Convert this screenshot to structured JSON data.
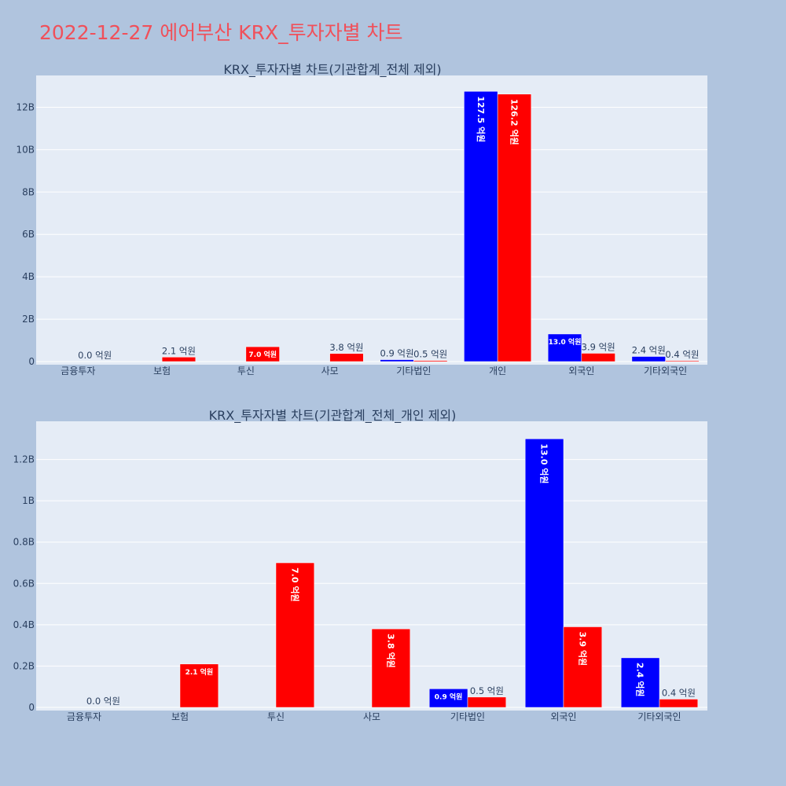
{
  "page": {
    "title": "2022-12-27 에어부산 KRX_투자자별 차트"
  },
  "colors": {
    "background": "#b0c4de",
    "plot_background": "#e5ecf6",
    "title": "#f0505a",
    "series_blue": "#0000ff",
    "series_red": "#ff0000"
  },
  "chart_data": [
    {
      "type": "bar",
      "title": "KRX_투자자별 차트(기관합계_전체 제외)",
      "categories": [
        "금융투자",
        "보험",
        "투신",
        "사모",
        "기타법인",
        "개인",
        "외국인",
        "기타외국인"
      ],
      "series": [
        {
          "color": "#0000ff",
          "values": [
            0,
            0,
            0,
            0,
            90000000,
            12750000000,
            1300000000,
            240000000
          ],
          "labels": [
            "",
            "",
            "",
            "",
            "0.9 억원",
            "127.5 억원",
            "13.0 억원",
            "2.4 억원"
          ]
        },
        {
          "color": "#ff0000",
          "values": [
            0,
            210000000,
            700000000,
            380000000,
            50000000,
            12620000000,
            390000000,
            40000000
          ],
          "labels": [
            "0.0 억원",
            "2.1 억원",
            "7.0 억원",
            "3.8 억원",
            "0.5 억원",
            "126.2 억원",
            "3.9 억원",
            "0.4 억원"
          ]
        }
      ],
      "ylim": [
        0,
        13500000000
      ],
      "yticks": [
        0,
        2000000000,
        4000000000,
        6000000000,
        8000000000,
        10000000000,
        12000000000
      ],
      "ytick_labels": [
        "0",
        "2B",
        "4B",
        "6B",
        "8B",
        "10B",
        "12B"
      ],
      "grid": true,
      "legend": "none"
    },
    {
      "type": "bar",
      "title": "KRX_투자자별 차트(기관합계_전체_개인 제외)",
      "categories": [
        "금융투자",
        "보험",
        "투신",
        "사모",
        "기타법인",
        "외국인",
        "기타외국인"
      ],
      "series": [
        {
          "color": "#0000ff",
          "values": [
            0,
            0,
            0,
            0,
            90000000,
            1300000000,
            240000000
          ],
          "labels": [
            "",
            "",
            "",
            "",
            "0.9 억원",
            "13.0 억원",
            "2.4 억원"
          ]
        },
        {
          "color": "#ff0000",
          "values": [
            0,
            210000000,
            700000000,
            380000000,
            50000000,
            390000000,
            40000000
          ],
          "labels": [
            "0.0 억원",
            "2.1 억원",
            "7.0 억원",
            "3.8 억원",
            "0.5 억원",
            "3.9 억원",
            "0.4 억원"
          ]
        }
      ],
      "ylim": [
        0,
        1385000000
      ],
      "yticks": [
        0,
        200000000,
        400000000,
        600000000,
        800000000,
        1000000000,
        1200000000
      ],
      "ytick_labels": [
        "0",
        "0.2B",
        "0.4B",
        "0.6B",
        "0.8B",
        "1B",
        "1.2B"
      ],
      "grid": true,
      "legend": "none"
    }
  ]
}
